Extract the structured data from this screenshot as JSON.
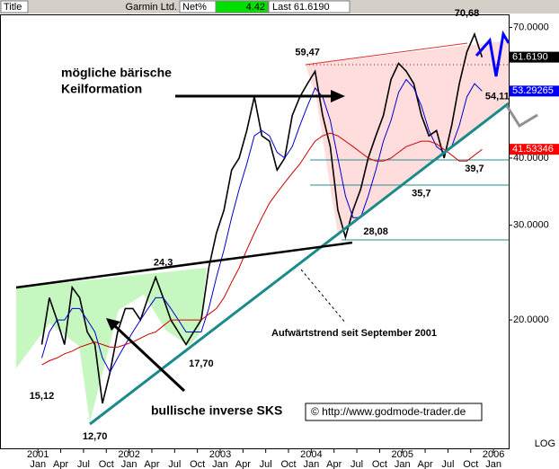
{
  "chart_data": {
    "type": "line",
    "header": {
      "field": "Title",
      "symbol": "Garmin Ltd.",
      "net_label": "Net%",
      "net": 4.42,
      "last": "Last 61.6190"
    },
    "log_scale": true,
    "ylim": [
      11.5,
      74
    ],
    "yticks": [
      {
        "value": 70,
        "label": "70.0000"
      },
      {
        "value": 40,
        "label": "40.0000"
      },
      {
        "value": 30,
        "label": "30.0000"
      },
      {
        "value": 20,
        "label": "20.0000"
      }
    ],
    "scale_label": "LOG",
    "xlim": [
      "2000-08",
      "2006-02"
    ],
    "xticks": [
      {
        "value": "2001-01",
        "label": "Jan"
      },
      {
        "value": "2001-04",
        "label": "Apr"
      },
      {
        "value": "2001-07",
        "label": "Jul"
      },
      {
        "value": "2001-10",
        "label": "Oct"
      },
      {
        "value": "2002-01",
        "label": "Jan"
      },
      {
        "value": "2002-04",
        "label": "Apr"
      },
      {
        "value": "2002-07",
        "label": "Jul"
      },
      {
        "value": "2002-10",
        "label": "Oct"
      },
      {
        "value": "2003-01",
        "label": "Jan"
      },
      {
        "value": "2003-04",
        "label": "Apr"
      },
      {
        "value": "2003-07",
        "label": "Jul"
      },
      {
        "value": "2003-10",
        "label": "Oct"
      },
      {
        "value": "2004-01",
        "label": "Jan"
      },
      {
        "value": "2004-04",
        "label": "Apr"
      },
      {
        "value": "2004-07",
        "label": "Jul"
      },
      {
        "value": "2004-10",
        "label": "Oct"
      },
      {
        "value": "2005-01",
        "label": "Jan"
      },
      {
        "value": "2005-04",
        "label": "Apr"
      },
      {
        "value": "2005-07",
        "label": "Jul"
      },
      {
        "value": "2005-10",
        "label": "Oct"
      },
      {
        "value": "2006-01",
        "label": "Jan"
      }
    ],
    "xyears": [
      {
        "value": "2001-01",
        "label": "2001"
      },
      {
        "value": "2002-01",
        "label": "2002"
      },
      {
        "value": "2003-01",
        "label": "2003"
      },
      {
        "value": "2004-01",
        "label": "2004"
      },
      {
        "value": "2005-01",
        "label": "2005"
      },
      {
        "value": "2006-01",
        "label": "2006"
      }
    ],
    "x": [
      "2001-01",
      "2001-02",
      "2001-03",
      "2001-04",
      "2001-05",
      "2001-06",
      "2001-07",
      "2001-08",
      "2001-09",
      "2001-10",
      "2001-11",
      "2001-12",
      "2002-01",
      "2002-02",
      "2002-03",
      "2002-04",
      "2002-05",
      "2002-06",
      "2002-07",
      "2002-08",
      "2002-09",
      "2002-10",
      "2002-11",
      "2002-12",
      "2003-01",
      "2003-02",
      "2003-03",
      "2003-04",
      "2003-05",
      "2003-06",
      "2003-07",
      "2003-08",
      "2003-09",
      "2003-10",
      "2003-11",
      "2003-12",
      "2004-01",
      "2004-02",
      "2004-03",
      "2004-04",
      "2004-05",
      "2004-06",
      "2004-07",
      "2004-08",
      "2004-09",
      "2004-10",
      "2004-11",
      "2004-12",
      "2005-01",
      "2005-02",
      "2005-03",
      "2005-04",
      "2005-05",
      "2005-06",
      "2005-07",
      "2005-08",
      "2005-09",
      "2005-10",
      "2005-11"
    ],
    "series": [
      {
        "color": "#000000",
        "values": [
          18,
          22,
          20,
          18,
          23,
          22,
          19,
          18,
          14,
          16,
          19,
          21,
          21,
          20,
          22,
          24,
          22,
          20,
          19,
          18,
          19,
          20,
          25,
          29,
          32,
          38,
          40,
          45,
          52,
          44,
          43,
          38,
          40,
          48,
          52,
          55,
          58,
          48,
          42,
          32,
          28.5,
          32,
          35,
          40,
          44,
          48,
          56,
          60,
          58,
          55,
          48,
          44,
          45,
          40,
          46,
          55,
          63,
          68,
          61.6
        ]
      },
      {
        "color": "#0000cc",
        "values": [
          17,
          19,
          20,
          20,
          21,
          21,
          20,
          19,
          17,
          16,
          17,
          18,
          19,
          20,
          21,
          22,
          22,
          21,
          20,
          19,
          19,
          19,
          21,
          24,
          27,
          31,
          35,
          39,
          44,
          45,
          44,
          41,
          40,
          42,
          46,
          50,
          54,
          52,
          47,
          40,
          34,
          31,
          31,
          34,
          38,
          43,
          47,
          53,
          56,
          54,
          50,
          45,
          42,
          41,
          42,
          46,
          52,
          55,
          53.3
        ]
      },
      {
        "color": "#cc0000",
        "values": [
          16.5,
          16.8,
          17,
          17.3,
          17.5,
          17.8,
          18,
          18.2,
          18,
          17.8,
          17.8,
          18,
          18.2,
          18.5,
          18.8,
          19,
          19.5,
          20,
          20,
          20,
          20,
          20,
          20.5,
          21,
          22,
          23.5,
          25,
          27,
          29,
          31,
          33,
          34.5,
          36,
          37.5,
          39,
          41,
          43,
          44,
          44.5,
          44,
          43,
          42,
          41,
          40,
          39.5,
          39.5,
          40,
          41,
          42,
          42.5,
          43,
          43,
          42.5,
          41.5,
          40.5,
          39.5,
          39.5,
          40.5,
          41.5
        ]
      }
    ],
    "price_markers": [
      {
        "value": 61.619,
        "label": "61.6190",
        "color": "#000000"
      },
      {
        "value": 53.29265,
        "label": "53.29265",
        "color": "#0000ff"
      },
      {
        "value": 41.53346,
        "label": "41.53346",
        "color": "#ff0000"
      }
    ],
    "price_labels": [
      {
        "value": 15.12,
        "label": "15,12",
        "at": "2001-01"
      },
      {
        "value": 12.7,
        "label": "12,70",
        "at": "2001-08"
      },
      {
        "value": 17.7,
        "label": "17,70",
        "at": "2002-10"
      },
      {
        "value": 24.3,
        "label": "24,3",
        "at": "2002-05"
      },
      {
        "value": 59.47,
        "label": "59,47",
        "at": "2003-12"
      },
      {
        "value": 70.68,
        "label": "70,68",
        "at": "2005-09"
      },
      {
        "value": 54.11,
        "label": "54,11",
        "at": "2006-01"
      },
      {
        "value": 39.7,
        "label": "39,7",
        "at": "2005-10"
      },
      {
        "value": 35.7,
        "label": "35,7",
        "at": "2005-03"
      },
      {
        "value": 28.08,
        "label": "28,08",
        "at": "2004-09"
      }
    ],
    "annotations": {
      "wedge": [
        "mögliche bärische",
        "Keilformation"
      ],
      "sks": "bullische inverse SKS",
      "trend": "Aufwärtstrend seit September 2001",
      "copyright": "© http://www.godmode-trader.de"
    }
  }
}
